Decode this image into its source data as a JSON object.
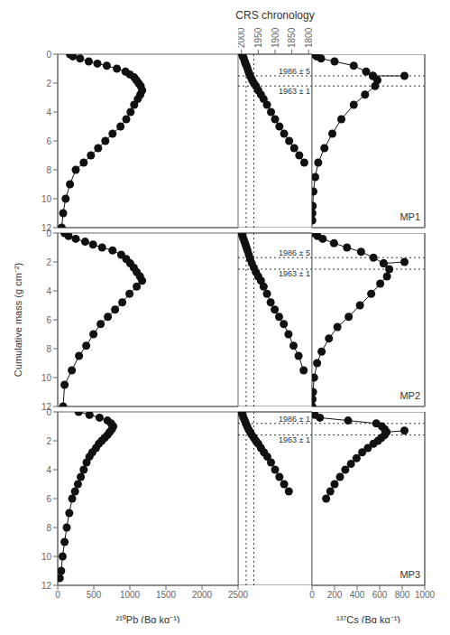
{
  "chart_data": [
    {
      "type": "line",
      "marker": "circle",
      "color": "#111111",
      "series": [
        {
          "x": [
            170,
            210,
            310,
            430,
            550,
            680,
            820,
            940,
            1000,
            1060,
            1090,
            1120,
            1150,
            1170,
            1145,
            1110,
            1060,
            1010,
            950,
            870,
            760,
            660,
            560,
            460,
            360,
            250,
            170,
            110,
            75,
            55
          ],
          "values": [
            0.0,
            0.15,
            0.3,
            0.5,
            0.65,
            0.8,
            1.0,
            1.2,
            1.4,
            1.6,
            1.8,
            2.0,
            2.2,
            2.5,
            2.8,
            3.1,
            3.5,
            4.0,
            4.5,
            5.0,
            5.5,
            6.0,
            6.5,
            7.0,
            7.5,
            8.0,
            9.0,
            10.0,
            11.0,
            12.0
          ]
        }
      ],
      "xlim": [
        0,
        2500
      ],
      "xticks": [
        0,
        500,
        1000,
        1500,
        2000,
        2500
      ],
      "ylim": [
        12,
        0
      ],
      "yticks": [
        0,
        2,
        4,
        6,
        8,
        10,
        12
      ],
      "tick_labels": "y"
    },
    {
      "type": "line",
      "marker": "circle",
      "color": "#111111",
      "title": "CRS chronology",
      "series": [
        {
          "x": [
            1998,
            1996,
            1993,
            1990,
            1988,
            1985,
            1982,
            1979,
            1976,
            1972,
            1968,
            1963,
            1957,
            1950,
            1942,
            1934,
            1924,
            1912,
            1900,
            1887,
            1873,
            1858,
            1843,
            1828,
            1813
          ],
          "values": [
            0.0,
            0.15,
            0.3,
            0.5,
            0.65,
            0.8,
            1.0,
            1.2,
            1.4,
            1.6,
            1.8,
            2.0,
            2.2,
            2.5,
            2.8,
            3.1,
            3.5,
            4.0,
            4.5,
            5.0,
            5.5,
            6.0,
            6.5,
            7.0,
            7.5
          ]
        }
      ],
      "xlim": [
        2010,
        1790
      ],
      "xticks": [
        2000,
        1950,
        1900,
        1850,
        1800
      ],
      "ylim": [
        12,
        0
      ],
      "tick_labels": "x",
      "vlines": [
        1986,
        1963
      ],
      "hlines": [
        {
          "value": 1.5,
          "label": "1986 ± 5"
        },
        {
          "value": 2.2,
          "label": "1963 ± 1"
        }
      ]
    },
    {
      "type": "line",
      "marker": "circle",
      "color": "#111111",
      "series": [
        {
          "x": [
            20,
            40,
            80,
            200,
            370,
            480,
            540,
            580,
            560,
            470,
            370,
            260,
            180,
            110,
            55,
            28,
            12,
            6,
            3,
            2
          ],
          "values": [
            0.0,
            0.15,
            0.3,
            0.5,
            0.8,
            1.2,
            1.5,
            1.8,
            2.2,
            2.8,
            3.5,
            4.5,
            5.5,
            6.5,
            7.5,
            8.5,
            9.5,
            10.5,
            11.0,
            11.5
          ]
        },
        {
          "x": [
            540,
            820
          ],
          "values": [
            1.5,
            1.5
          ]
        }
      ],
      "xlim": [
        0,
        1000
      ],
      "xticks": [
        0,
        200,
        400,
        600,
        800,
        1000
      ],
      "ylim": [
        12,
        0
      ],
      "yticks": [
        0,
        2,
        4,
        6,
        8,
        10,
        12
      ],
      "tick_labels": false,
      "hlines": [
        1.5,
        2.2
      ],
      "annotations": [
        "MP1"
      ]
    },
    {
      "type": "line",
      "marker": "circle",
      "color": "#111111",
      "ylabel": "Cumulative mass (g cm⁻²)",
      "series": [
        {
          "x": [
            95,
            150,
            250,
            380,
            490,
            615,
            760,
            880,
            950,
            1005,
            1055,
            1095,
            1140,
            1170,
            1095,
            995,
            895,
            795,
            695,
            595,
            495,
            395,
            295,
            195,
            95,
            75
          ],
          "values": [
            0.0,
            0.2,
            0.4,
            0.6,
            0.8,
            1.0,
            1.2,
            1.5,
            1.8,
            2.1,
            2.4,
            2.7,
            3.0,
            3.3,
            3.7,
            4.2,
            4.8,
            5.3,
            5.8,
            6.3,
            7.0,
            7.8,
            8.5,
            9.5,
            10.5,
            12.0
          ]
        }
      ],
      "xlim": [
        0,
        2500
      ],
      "xticks": [
        0,
        500,
        1000,
        1500,
        2000,
        2500
      ],
      "ylim": [
        12,
        0
      ],
      "yticks": [
        0,
        2,
        4,
        6,
        8,
        10,
        12
      ],
      "tick_labels": "y"
    },
    {
      "type": "line",
      "marker": "circle",
      "color": "#111111",
      "series": [
        {
          "x": [
            1999,
            1997,
            1994,
            1991,
            1988,
            1985,
            1982,
            1978,
            1974,
            1969,
            1963,
            1957,
            1950,
            1942,
            1934,
            1924,
            1913,
            1901,
            1888,
            1874,
            1860,
            1845,
            1830,
            1815
          ],
          "values": [
            0.0,
            0.2,
            0.4,
            0.6,
            0.8,
            1.0,
            1.2,
            1.5,
            1.8,
            2.1,
            2.4,
            2.7,
            3.0,
            3.3,
            3.7,
            4.2,
            4.8,
            5.3,
            5.8,
            6.3,
            7.0,
            7.8,
            8.5,
            9.5
          ]
        }
      ],
      "xlim": [
        2010,
        1790
      ],
      "xticks": [
        2000,
        1950,
        1900,
        1850,
        1800
      ],
      "ylim": [
        12,
        0
      ],
      "tick_labels": false,
      "vlines": [
        1986,
        1963
      ],
      "hlines": [
        {
          "value": 1.7,
          "label": "1986 ± 5"
        },
        {
          "value": 2.5,
          "label": "1963 ± 1"
        }
      ]
    },
    {
      "type": "line",
      "marker": "circle",
      "color": "#111111",
      "series": [
        {
          "x": [
            18,
            48,
            95,
            195,
            310,
            435,
            545,
            635,
            685,
            665,
            605,
            525,
            425,
            325,
            225,
            150,
            85,
            45,
            18,
            9,
            4,
            2
          ],
          "values": [
            0.0,
            0.2,
            0.4,
            0.7,
            1.0,
            1.3,
            1.7,
            2.1,
            2.5,
            3.0,
            3.5,
            4.2,
            5.0,
            5.8,
            6.5,
            7.3,
            8.2,
            9.0,
            10.0,
            11.0,
            11.5,
            12.0
          ]
        },
        {
          "x": [
            635,
            820
          ],
          "values": [
            2.1,
            2.0
          ]
        }
      ],
      "xlim": [
        0,
        1000
      ],
      "xticks": [
        0,
        200,
        400,
        600,
        800,
        1000
      ],
      "ylim": [
        12,
        0
      ],
      "yticks": [
        0,
        2,
        4,
        6,
        8,
        10,
        12
      ],
      "tick_labels": false,
      "hlines": [
        1.7,
        2.5
      ],
      "annotations": [
        "MP2"
      ]
    },
    {
      "type": "line",
      "marker": "circle",
      "color": "#111111",
      "xlabel": "²¹⁰Pb  (Bq kg⁻¹)",
      "series": [
        {
          "x": [
            290,
            440,
            580,
            690,
            740,
            770,
            750,
            720,
            690,
            650,
            610,
            570,
            530,
            480,
            440,
            400,
            360,
            320,
            280,
            240,
            200,
            160,
            125,
            95,
            68,
            48,
            28
          ],
          "values": [
            0.0,
            0.2,
            0.4,
            0.6,
            0.8,
            1.0,
            1.2,
            1.4,
            1.6,
            1.8,
            2.0,
            2.2,
            2.5,
            2.8,
            3.1,
            3.5,
            4.0,
            4.5,
            5.0,
            5.5,
            6.0,
            7.0,
            8.0,
            9.0,
            10.0,
            11.0,
            11.5
          ]
        }
      ],
      "xlim": [
        0,
        2500
      ],
      "xticks": [
        0,
        500,
        1000,
        1500,
        2000,
        2500
      ],
      "ylim": [
        12,
        0
      ],
      "yticks": [
        0,
        2,
        4,
        6,
        8,
        10,
        12
      ]
    },
    {
      "type": "line",
      "marker": "circle",
      "color": "#111111",
      "series": [
        {
          "x": [
            2000,
            1997,
            1994,
            1990,
            1987,
            1983,
            1979,
            1974,
            1969,
            1963,
            1957,
            1950,
            1942,
            1933,
            1923,
            1912,
            1900,
            1887,
            1873,
            1859
          ],
          "values": [
            0.0,
            0.2,
            0.4,
            0.6,
            0.8,
            1.0,
            1.2,
            1.4,
            1.6,
            1.8,
            2.0,
            2.2,
            2.5,
            2.8,
            3.1,
            3.5,
            4.0,
            4.5,
            5.0,
            5.5
          ]
        }
      ],
      "xlim": [
        2010,
        1790
      ],
      "xticks": [
        2000,
        1950,
        1900,
        1850,
        1800
      ],
      "ylim": [
        12,
        0
      ],
      "tick_labels": false,
      "vlines": [
        1986,
        1963
      ],
      "hlines": [
        {
          "value": 0.8,
          "label": "1986 ± 1"
        },
        {
          "value": 1.6,
          "label": "1963 ± 1"
        }
      ]
    },
    {
      "type": "line",
      "marker": "circle",
      "color": "#111111",
      "xlabel": "¹³⁷Cs  (Bq kg⁻¹)",
      "series": [
        {
          "x": [
            8,
            25,
            70,
            320,
            570,
            620,
            645,
            660,
            645,
            615,
            585,
            545,
            495,
            445,
            395,
            345,
            295,
            248,
            200,
            162,
            125
          ],
          "values": [
            0.0,
            0.2,
            0.4,
            0.6,
            0.8,
            1.0,
            1.2,
            1.4,
            1.6,
            1.8,
            2.0,
            2.2,
            2.5,
            2.8,
            3.2,
            3.6,
            4.0,
            4.5,
            5.0,
            5.5,
            6.0
          ]
        },
        {
          "x": [
            660,
            820
          ],
          "values": [
            1.4,
            1.3
          ]
        }
      ],
      "xlim": [
        0,
        1000
      ],
      "xticks": [
        0,
        200,
        400,
        600,
        800,
        1000
      ],
      "ylim": [
        12,
        0
      ],
      "yticks": [
        0,
        2,
        4,
        6,
        8,
        10,
        12
      ],
      "tick_labels": "x",
      "hlines": [
        0.8,
        1.6
      ],
      "annotations": [
        "MP3"
      ]
    }
  ]
}
